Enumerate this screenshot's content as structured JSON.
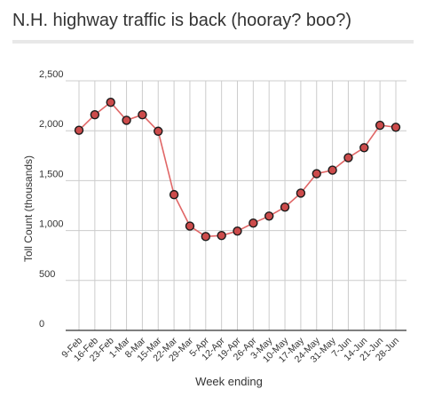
{
  "chart_data": {
    "type": "line",
    "title": "N.H. highway traffic is back (hooray? boo?)",
    "xlabel": "Week ending",
    "ylabel": "Toll Count (thousands)",
    "ylim": [
      0,
      2500
    ],
    "yticks": [
      0,
      500,
      1000,
      1500,
      2000,
      2500
    ],
    "ytick_labels": [
      "0",
      "500",
      "1,000",
      "1,500",
      "2,000",
      "2,500"
    ],
    "grid": true,
    "categories": [
      "9-Feb",
      "16-Feb",
      "23-Feb",
      "1-Mar",
      "8-Mar",
      "15-Mar",
      "22-Mar",
      "29-Mar",
      "5-Apr",
      "12-Apr",
      "19-Apr",
      "26-Apr",
      "3-May",
      "10-May",
      "17-May",
      "24-May",
      "31-May",
      "7-Jun",
      "14-Jun",
      "21-Jun",
      "28-Jun"
    ],
    "series": [
      {
        "values": [
          2005,
          2160,
          2285,
          2105,
          2160,
          1995,
          1360,
          1045,
          940,
          950,
          995,
          1075,
          1145,
          1235,
          1375,
          1570,
          1605,
          1730,
          1830,
          2055,
          2035
        ]
      }
    ],
    "colors": {
      "line": "#e06666",
      "marker_fill": "#cc4b4b",
      "marker_stroke": "#1a1a1a",
      "grid": "#cccccc",
      "axis": "#333333"
    }
  }
}
